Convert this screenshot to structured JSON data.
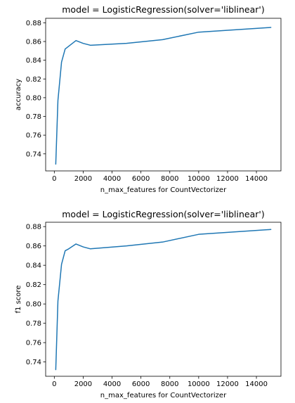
{
  "chart_data": [
    {
      "type": "line",
      "title": "model = LogisticRegression(solver='liblinear')",
      "xlabel": "n_max_features for CountVectorizer",
      "ylabel": "accuracy",
      "xlim": [
        -600,
        15700
      ],
      "ylim": [
        0.7218,
        0.8848
      ],
      "xticks": [
        0,
        2000,
        4000,
        6000,
        8000,
        10000,
        12000,
        14000
      ],
      "xtick_labels": [
        "0",
        "2000",
        "4000",
        "6000",
        "8000",
        "10000",
        "12000",
        "14000"
      ],
      "yticks": [
        0.74,
        0.76,
        0.78,
        0.8,
        0.82,
        0.84,
        0.86,
        0.88
      ],
      "ytick_labels": [
        "0.74",
        "0.76",
        "0.78",
        "0.80",
        "0.82",
        "0.84",
        "0.86",
        "0.88"
      ],
      "grid": false,
      "series": [
        {
          "color": "#1f77b4",
          "x": [
            100,
            250,
            500,
            750,
            1000,
            1500,
            2000,
            2500,
            5000,
            7500,
            10000,
            15000
          ],
          "y": [
            0.729,
            0.797,
            0.838,
            0.852,
            0.855,
            0.861,
            0.858,
            0.856,
            0.858,
            0.862,
            0.87,
            0.875
          ]
        }
      ]
    },
    {
      "type": "line",
      "title": "model = LogisticRegression(solver='liblinear')",
      "xlabel": "n_max_features for CountVectorizer",
      "ylabel": "f1 score",
      "xlim": [
        -600,
        15700
      ],
      "ylim": [
        0.7252,
        0.8845
      ],
      "xticks": [
        0,
        2000,
        4000,
        6000,
        8000,
        10000,
        12000,
        14000
      ],
      "xtick_labels": [
        "0",
        "2000",
        "4000",
        "6000",
        "8000",
        "10000",
        "12000",
        "14000"
      ],
      "yticks": [
        0.74,
        0.76,
        0.78,
        0.8,
        0.82,
        0.84,
        0.86,
        0.88
      ],
      "ytick_labels": [
        "0.74",
        "0.76",
        "0.78",
        "0.80",
        "0.82",
        "0.84",
        "0.86",
        "0.88"
      ],
      "grid": false,
      "series": [
        {
          "color": "#1f77b4",
          "x": [
            100,
            250,
            500,
            750,
            1000,
            1500,
            2000,
            2500,
            5000,
            7500,
            10000,
            15000
          ],
          "y": [
            0.732,
            0.803,
            0.841,
            0.855,
            0.857,
            0.862,
            0.859,
            0.857,
            0.86,
            0.864,
            0.872,
            0.877
          ]
        }
      ]
    }
  ]
}
